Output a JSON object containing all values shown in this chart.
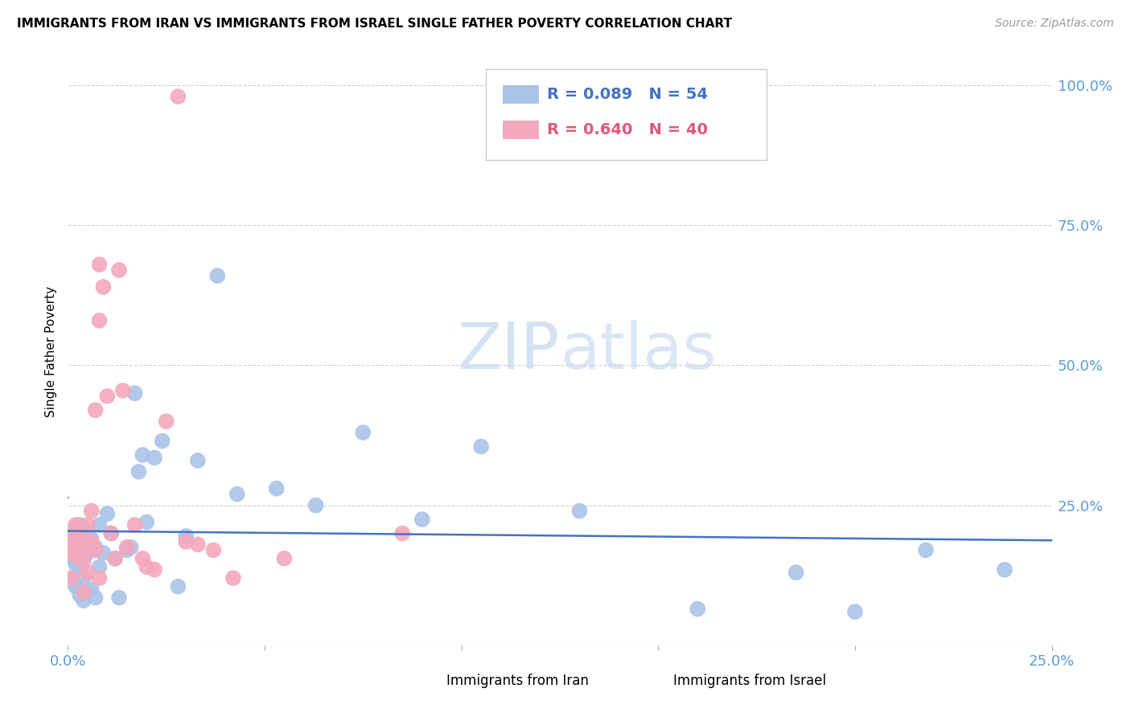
{
  "title": "IMMIGRANTS FROM IRAN VS IMMIGRANTS FROM ISRAEL SINGLE FATHER POVERTY CORRELATION CHART",
  "source": "Source: ZipAtlas.com",
  "ylabel": "Single Father Poverty",
  "iran_color": "#aac4e8",
  "israel_color": "#f4a8bc",
  "iran_line_color": "#4472c4",
  "israel_line_color": "#e05878",
  "watermark_zip": "ZIP",
  "watermark_atlas": "atlas",
  "iran_R": 0.089,
  "iran_N": 54,
  "israel_R": 0.64,
  "israel_N": 40,
  "iran_x": [
    0.001,
    0.001,
    0.001,
    0.001,
    0.002,
    0.002,
    0.002,
    0.002,
    0.003,
    0.003,
    0.003,
    0.003,
    0.004,
    0.004,
    0.004,
    0.004,
    0.005,
    0.005,
    0.005,
    0.006,
    0.006,
    0.007,
    0.007,
    0.008,
    0.008,
    0.009,
    0.01,
    0.011,
    0.012,
    0.013,
    0.015,
    0.016,
    0.017,
    0.018,
    0.019,
    0.02,
    0.022,
    0.024,
    0.028,
    0.03,
    0.033,
    0.038,
    0.043,
    0.053,
    0.063,
    0.075,
    0.09,
    0.105,
    0.13,
    0.16,
    0.185,
    0.2,
    0.218,
    0.238
  ],
  "iran_y": [
    0.195,
    0.175,
    0.155,
    0.115,
    0.21,
    0.185,
    0.145,
    0.105,
    0.215,
    0.18,
    0.14,
    0.09,
    0.205,
    0.16,
    0.12,
    0.08,
    0.2,
    0.165,
    0.095,
    0.19,
    0.1,
    0.175,
    0.085,
    0.215,
    0.14,
    0.165,
    0.235,
    0.2,
    0.155,
    0.085,
    0.17,
    0.175,
    0.45,
    0.31,
    0.34,
    0.22,
    0.335,
    0.365,
    0.105,
    0.195,
    0.33,
    0.66,
    0.27,
    0.28,
    0.25,
    0.38,
    0.225,
    0.355,
    0.24,
    0.065,
    0.13,
    0.06,
    0.17,
    0.135
  ],
  "israel_x": [
    0.001,
    0.001,
    0.001,
    0.002,
    0.002,
    0.002,
    0.003,
    0.003,
    0.004,
    0.004,
    0.004,
    0.005,
    0.005,
    0.005,
    0.006,
    0.006,
    0.007,
    0.007,
    0.008,
    0.008,
    0.008,
    0.009,
    0.01,
    0.011,
    0.012,
    0.013,
    0.014,
    0.015,
    0.017,
    0.019,
    0.02,
    0.022,
    0.025,
    0.028,
    0.03,
    0.033,
    0.037,
    0.042,
    0.055,
    0.085
  ],
  "israel_y": [
    0.12,
    0.17,
    0.185,
    0.16,
    0.215,
    0.195,
    0.175,
    0.2,
    0.185,
    0.15,
    0.095,
    0.215,
    0.175,
    0.13,
    0.24,
    0.185,
    0.42,
    0.17,
    0.58,
    0.12,
    0.68,
    0.64,
    0.445,
    0.2,
    0.155,
    0.67,
    0.455,
    0.175,
    0.215,
    0.155,
    0.14,
    0.135,
    0.4,
    0.98,
    0.185,
    0.18,
    0.17,
    0.12,
    0.155,
    0.2
  ],
  "xlim": [
    0.0,
    0.25
  ],
  "ylim": [
    0.0,
    1.05
  ],
  "background_color": "#ffffff"
}
